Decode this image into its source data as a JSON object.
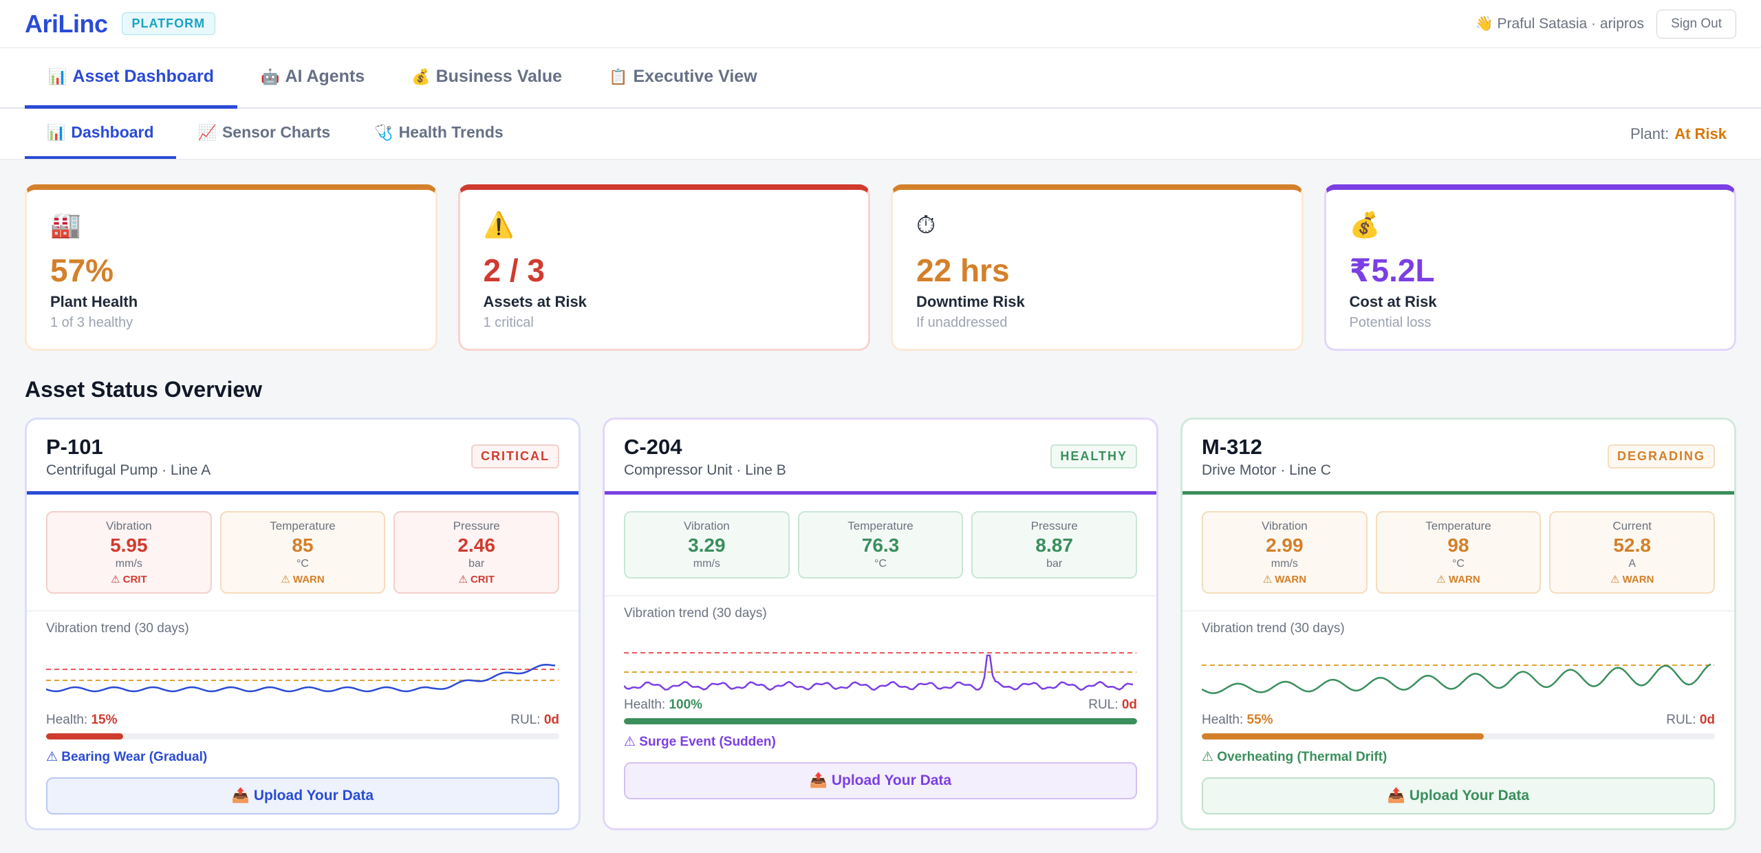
{
  "topbar": {
    "logo": "AriLinc",
    "platform_badge": "PLATFORM",
    "user": "👋 Praful Satasia · aripros",
    "signout_label": "Sign Out"
  },
  "main_tabs": [
    {
      "icon": "📊",
      "label": "Asset Dashboard"
    },
    {
      "icon": "🤖",
      "label": "AI Agents"
    },
    {
      "icon": "💰",
      "label": "Business Value"
    },
    {
      "icon": "📋",
      "label": "Executive View"
    }
  ],
  "sub_tabs": [
    {
      "icon": "📊",
      "label": "Dashboard"
    },
    {
      "icon": "📈",
      "label": "Sensor Charts"
    },
    {
      "icon": "🩺",
      "label": "Health Trends"
    }
  ],
  "plant_status": {
    "label": "Plant:",
    "value": "At Risk"
  },
  "kpis": [
    {
      "icon": "🏭",
      "value": "57%",
      "label": "Plant Health",
      "sub": "1 of 3 healthy",
      "color": "#d4802a"
    },
    {
      "icon": "⚠️",
      "value": "2 / 3",
      "label": "Assets at Risk",
      "sub": "1 critical",
      "color": "#d03b2f"
    },
    {
      "icon": "⏱",
      "value": "22 hrs",
      "label": "Downtime Risk",
      "sub": "If unaddressed",
      "color": "#d4802a"
    },
    {
      "icon": "💰",
      "value": "₹5.2L",
      "label": "Cost at Risk",
      "sub": "Potential loss",
      "color": "#7b3fe4"
    }
  ],
  "section_title": "Asset Status Overview",
  "assets": [
    {
      "id": "P-101",
      "desc": "Centrifugal Pump · Line A",
      "status": "CRITICAL",
      "accent": "#2a4bd6",
      "metrics": [
        {
          "label": "Vibration",
          "value": "5.95",
          "unit": "mm/s",
          "status": "⚠ CRIT"
        },
        {
          "label": "Temperature",
          "value": "85",
          "unit": "°C",
          "status": "⚠ WARN"
        },
        {
          "label": "Pressure",
          "value": "2.46",
          "unit": "bar",
          "status": "⚠ CRIT"
        }
      ],
      "trend_label": "Vibration trend (30 days)",
      "health_label": "Health:",
      "health_value": "15%",
      "health_fraction": 0.15,
      "rul_label": "RUL:",
      "rul_value": "0d",
      "fault": "⚠ Bearing Wear (Gradual)",
      "upload_label": "📤 Upload Your Data"
    },
    {
      "id": "C-204",
      "desc": "Compressor Unit · Line B",
      "status": "HEALTHY",
      "accent": "#7b3fe4",
      "metrics": [
        {
          "label": "Vibration",
          "value": "3.29",
          "unit": "mm/s",
          "status": ""
        },
        {
          "label": "Temperature",
          "value": "76.3",
          "unit": "°C",
          "status": ""
        },
        {
          "label": "Pressure",
          "value": "8.87",
          "unit": "bar",
          "status": ""
        }
      ],
      "trend_label": "Vibration trend (30 days)",
      "health_label": "Health:",
      "health_value": "100%",
      "health_fraction": 1.0,
      "rul_label": "RUL:",
      "rul_value": "0d",
      "fault": "⚠ Surge Event (Sudden)",
      "upload_label": "📤 Upload Your Data"
    },
    {
      "id": "M-312",
      "desc": "Drive Motor · Line C",
      "status": "DEGRADING",
      "accent": "#3a8f5c",
      "metrics": [
        {
          "label": "Vibration",
          "value": "2.99",
          "unit": "mm/s",
          "status": "⚠ WARN"
        },
        {
          "label": "Temperature",
          "value": "98",
          "unit": "°C",
          "status": "⚠ WARN"
        },
        {
          "label": "Current",
          "value": "52.8",
          "unit": "A",
          "status": "⚠ WARN"
        }
      ],
      "trend_label": "Vibration trend (30 days)",
      "health_label": "Health:",
      "health_value": "55%",
      "health_fraction": 0.55,
      "rul_label": "RUL:",
      "rul_value": "0d",
      "fault": "⚠ Overheating (Thermal Drift)",
      "upload_label": "📤 Upload Your Data"
    }
  ]
}
